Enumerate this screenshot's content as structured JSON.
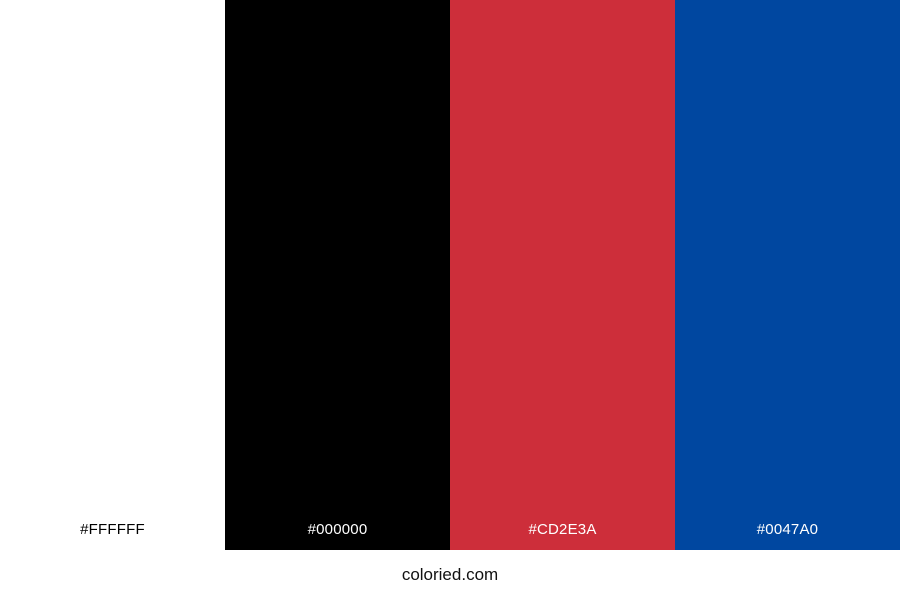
{
  "palette": {
    "swatches": [
      {
        "hex": "#FFFFFF",
        "label": "#FFFFFF",
        "label_color": "#000000"
      },
      {
        "hex": "#000000",
        "label": "#000000",
        "label_color": "#FFFFFF"
      },
      {
        "hex": "#CD2E3A",
        "label": "#CD2E3A",
        "label_color": "#FFFFFF"
      },
      {
        "hex": "#0047A0",
        "label": "#0047A0",
        "label_color": "#FFFFFF"
      }
    ]
  },
  "footer": {
    "credit_text": "coloried.com"
  }
}
